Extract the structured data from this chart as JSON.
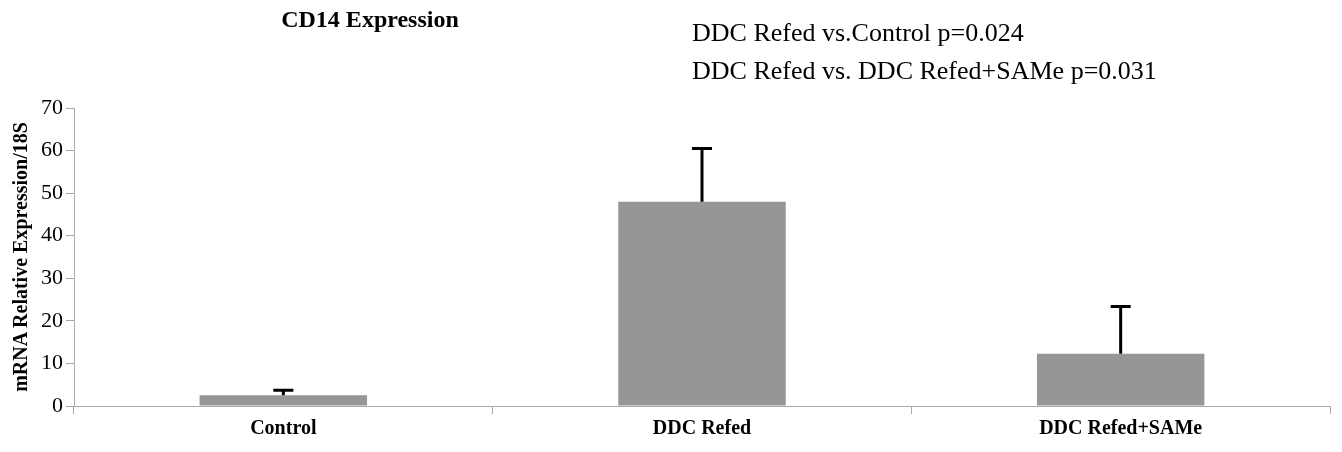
{
  "chart_data": {
    "type": "bar",
    "title": "CD14 Expression",
    "ylabel": "mRNA Relative Expression/18S",
    "annotations": [
      "DDC Refed vs.Control p=0.024",
      "DDC Refed vs. DDC Refed+SAMe p=0.031"
    ],
    "categories": [
      "Control",
      "DDC Refed",
      "DDC Refed+SAMe"
    ],
    "values": [
      2.5,
      48,
      12.3
    ],
    "errors": [
      [
        2.5,
        3.7
      ],
      [
        48,
        60.5
      ],
      [
        12.3,
        23.4
      ]
    ],
    "color": "#969696",
    "ylim": [
      0,
      70
    ],
    "yticks": [
      0,
      10,
      20,
      30,
      40,
      50,
      60,
      70
    ],
    "grid": false,
    "legend": false
  }
}
